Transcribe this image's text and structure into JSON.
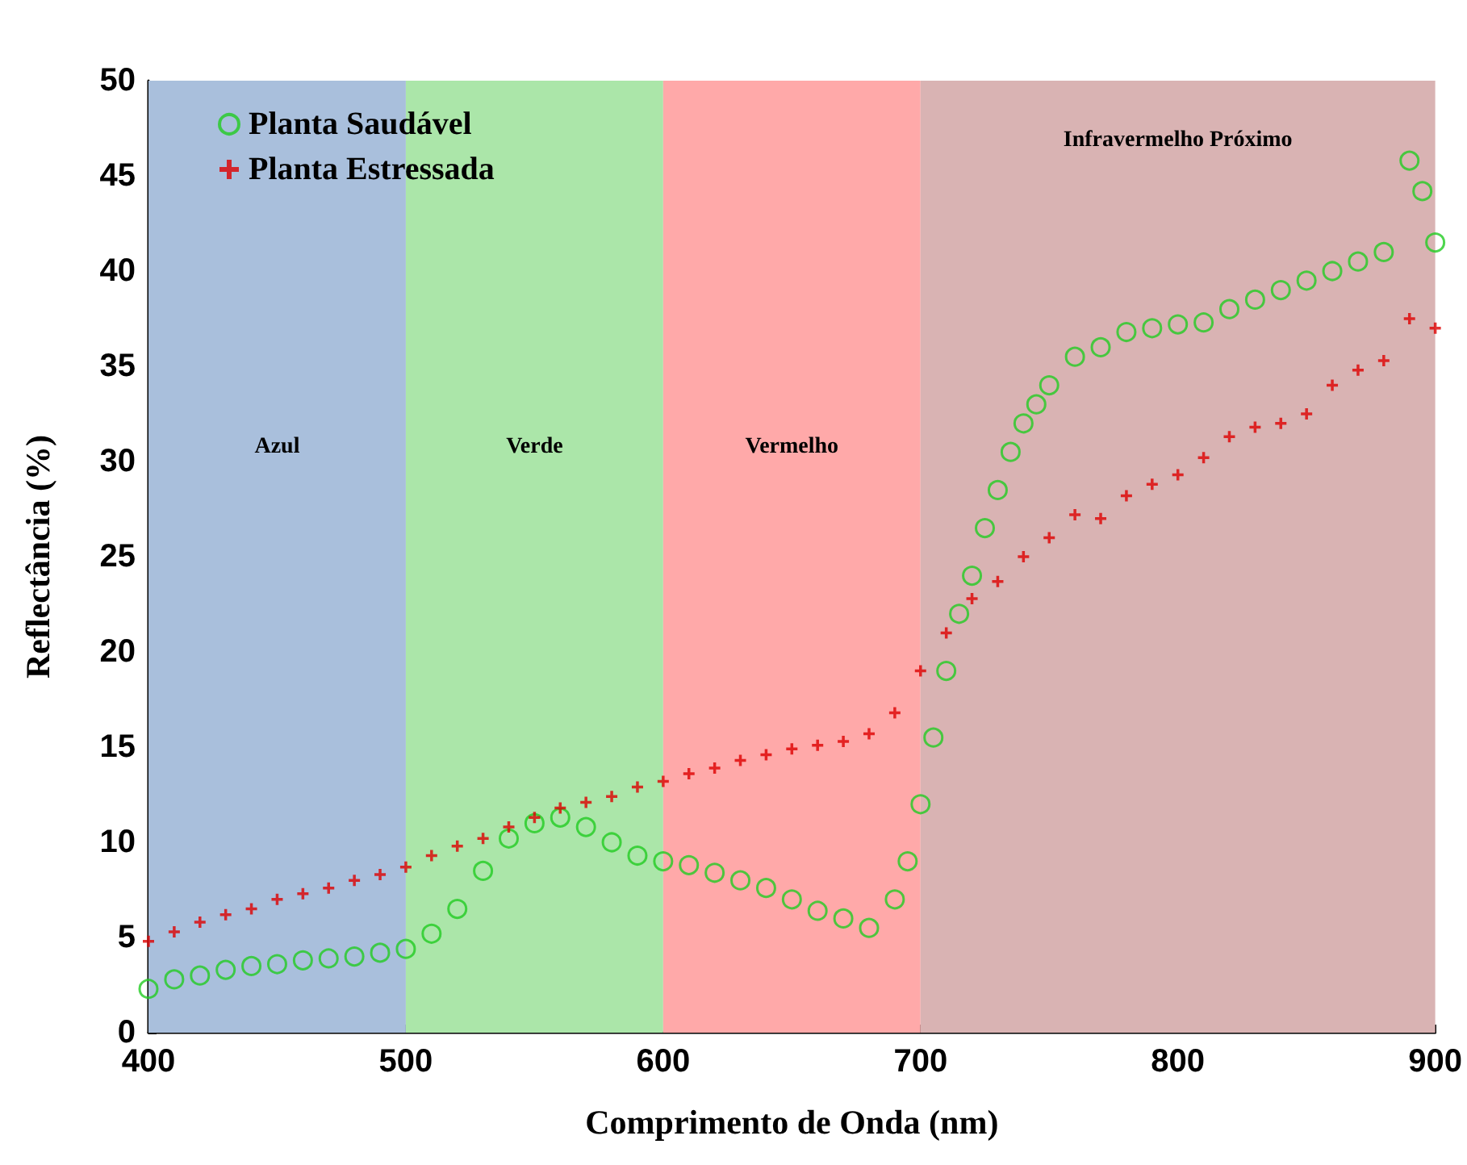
{
  "chart_data": {
    "type": "scatter",
    "xlabel": "Comprimento de Onda (nm)",
    "ylabel": "Reflectância (%)",
    "xlim": [
      400,
      900
    ],
    "xticks": [
      400,
      500,
      600,
      700,
      800,
      900
    ],
    "ylim": [
      0,
      50
    ],
    "yticks": [
      0,
      5,
      10,
      15,
      20,
      25,
      30,
      35,
      40,
      45,
      50
    ],
    "grid": false,
    "legend": "top left",
    "bands": [
      {
        "axis": "x",
        "from": 400,
        "to": 500,
        "label": "Azul",
        "color": "#a9bfdc"
      },
      {
        "axis": "x",
        "from": 500,
        "to": 600,
        "label": "Verde",
        "color": "#abe6a9"
      },
      {
        "axis": "x",
        "from": 600,
        "to": 700,
        "label": "Vermelho",
        "color": "#ffa9a9"
      },
      {
        "axis": "x",
        "from": 700,
        "to": 900,
        "label": "Infravermelho Próximo",
        "color": "#d9b3b3"
      }
    ],
    "series": [
      {
        "name": "Planta Saudável",
        "color": "#22cc22",
        "marker": "circle",
        "x": [
          400,
          410,
          420,
          430,
          440,
          450,
          460,
          470,
          480,
          490,
          500,
          510,
          520,
          530,
          540,
          550,
          560,
          570,
          580,
          590,
          600,
          610,
          620,
          630,
          640,
          650,
          660,
          670,
          680,
          690,
          695,
          700,
          705,
          710,
          715,
          720,
          725,
          730,
          735,
          740,
          745,
          750,
          760,
          770,
          780,
          790,
          800,
          810,
          820,
          830,
          840,
          850,
          860,
          870,
          880,
          890,
          895,
          900
        ],
        "values": [
          2.3,
          2.8,
          3.0,
          3.3,
          3.5,
          3.6,
          3.8,
          3.9,
          4.0,
          4.2,
          4.4,
          5.2,
          6.5,
          8.5,
          10.2,
          11.0,
          11.3,
          10.8,
          10.0,
          9.3,
          9.0,
          8.8,
          8.4,
          8.0,
          7.6,
          7.0,
          6.4,
          6.0,
          5.5,
          7.0,
          9.0,
          12.0,
          15.5,
          19.0,
          22.0,
          24.0,
          26.5,
          28.5,
          30.5,
          32.0,
          33.0,
          34.0,
          35.5,
          36.0,
          36.8,
          37.0,
          37.2,
          37.3,
          38.0,
          38.5,
          39.0,
          39.5,
          40.0,
          40.5,
          41.0,
          45.8,
          44.2,
          41.5
        ]
      },
      {
        "name": "Planta Estressada",
        "color": "#dd0000",
        "marker": "cross",
        "x": [
          400,
          410,
          420,
          430,
          440,
          450,
          460,
          470,
          480,
          490,
          500,
          510,
          520,
          530,
          540,
          550,
          560,
          570,
          580,
          590,
          600,
          610,
          620,
          630,
          640,
          650,
          660,
          670,
          680,
          690,
          700,
          710,
          720,
          730,
          740,
          750,
          760,
          770,
          780,
          790,
          800,
          810,
          820,
          830,
          840,
          850,
          860,
          870,
          880,
          890,
          900
        ],
        "values": [
          4.8,
          5.3,
          5.8,
          6.2,
          6.5,
          7.0,
          7.3,
          7.6,
          8.0,
          8.3,
          8.7,
          9.3,
          9.8,
          10.2,
          10.8,
          11.3,
          11.8,
          12.1,
          12.4,
          12.9,
          13.2,
          13.6,
          13.9,
          14.3,
          14.6,
          14.9,
          15.1,
          15.3,
          15.7,
          16.8,
          19.0,
          21.0,
          22.8,
          23.7,
          25.0,
          26.0,
          27.2,
          27.0,
          28.2,
          28.8,
          29.3,
          30.2,
          31.3,
          31.8,
          32.0,
          32.5,
          34.0,
          34.8,
          35.3,
          37.5,
          37.0
        ]
      }
    ]
  }
}
